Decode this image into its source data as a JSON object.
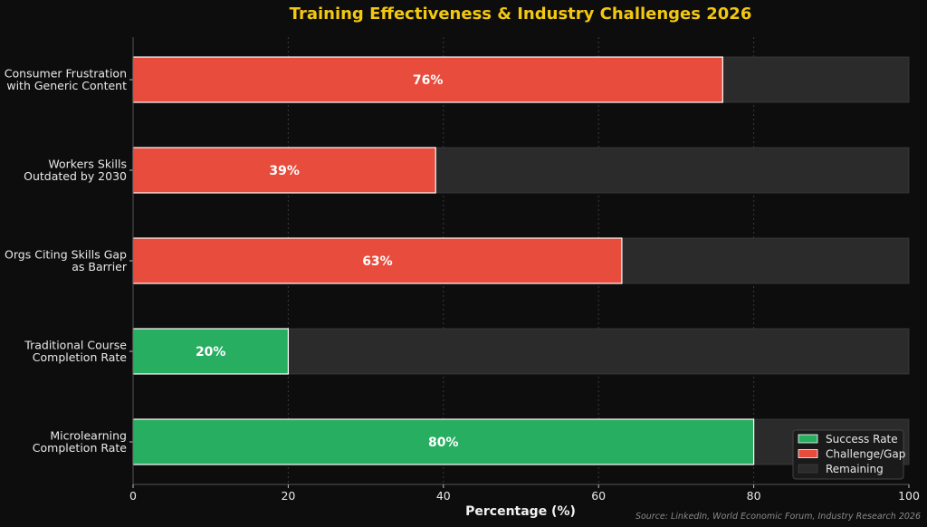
{
  "chart_data": {
    "type": "bar",
    "orientation": "horizontal",
    "stacked": true,
    "title": "Training Effectiveness & Industry Challenges 2026",
    "xlabel": "Percentage (%)",
    "ylabel": "",
    "xlim": [
      0,
      100
    ],
    "xticks": [
      "0",
      "20",
      "40",
      "60",
      "80",
      "100"
    ],
    "grid": "vertical dotted",
    "categories": [
      "Consumer Frustration\nwith Generic Content",
      "Workers Skills\nOutdated by 2030",
      "Orgs Citing Skills Gap\nas Barrier",
      "Traditional Course\nCompletion Rate",
      "Microlearning\nCompletion Rate"
    ],
    "values": [
      76,
      39,
      63,
      20,
      80
    ],
    "value_labels": [
      "76%",
      "39%",
      "63%",
      "20%",
      "80%"
    ],
    "kinds": [
      "challenge",
      "challenge",
      "challenge",
      "success",
      "success"
    ],
    "remaining": [
      24,
      61,
      37,
      80,
      20
    ],
    "legend": {
      "placement": "bottom-right",
      "entries": [
        {
          "label": "Success Rate",
          "color": "#27ae60"
        },
        {
          "label": "Challenge/Gap",
          "color": "#e74c3c"
        },
        {
          "label": "Remaining",
          "color": "#2b2b2b"
        }
      ]
    },
    "colors": {
      "success": "#27ae60",
      "challenge": "#e74c3c",
      "remaining": "#2b2b2b",
      "title": "#f2c811",
      "background": "#0d0d0d"
    },
    "source": "Source: LinkedIn, World Economic Forum, Industry Research 2026"
  }
}
